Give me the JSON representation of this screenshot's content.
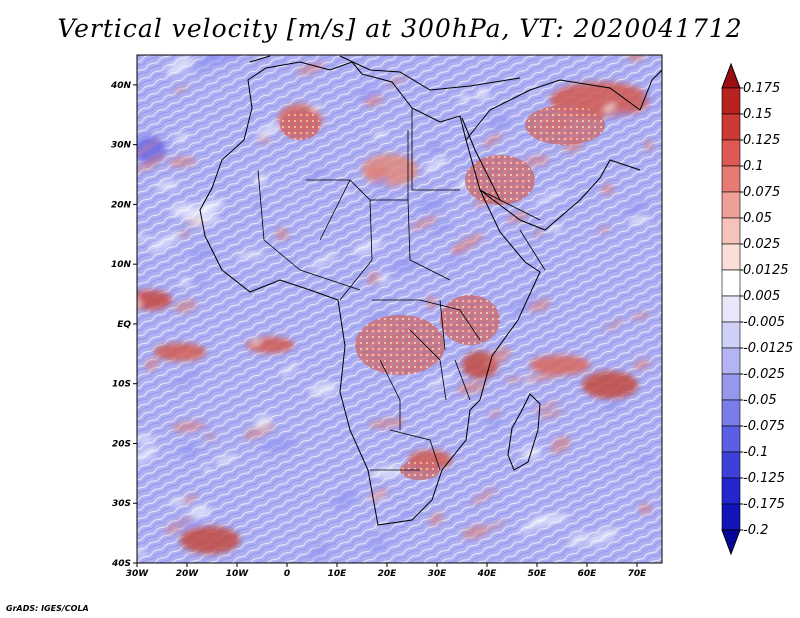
{
  "title": "Vertical velocity [m/s] at 300hPa, VT: 2020041712",
  "credit": "GrADS: IGES/COLA",
  "map": {
    "lon_range": [
      -30,
      75
    ],
    "lat_range": [
      -40,
      45
    ],
    "lon_ticks": [
      {
        "value": -30,
        "label": "30W"
      },
      {
        "value": -20,
        "label": "20W"
      },
      {
        "value": -10,
        "label": "10W"
      },
      {
        "value": 0,
        "label": "0"
      },
      {
        "value": 10,
        "label": "10E"
      },
      {
        "value": 20,
        "label": "20E"
      },
      {
        "value": 30,
        "label": "30E"
      },
      {
        "value": 40,
        "label": "40E"
      },
      {
        "value": 50,
        "label": "50E"
      },
      {
        "value": 60,
        "label": "60E"
      },
      {
        "value": 70,
        "label": "70E"
      }
    ],
    "lat_ticks": [
      {
        "value": 40,
        "label": "40N"
      },
      {
        "value": 30,
        "label": "30N"
      },
      {
        "value": 20,
        "label": "20N"
      },
      {
        "value": 10,
        "label": "10N"
      },
      {
        "value": 0,
        "label": "EQ"
      },
      {
        "value": -10,
        "label": "10S"
      },
      {
        "value": -20,
        "label": "20S"
      },
      {
        "value": -30,
        "label": "30S"
      },
      {
        "value": -40,
        "label": "40S"
      }
    ],
    "colors": {
      "background": "#aeb0f2",
      "neutral": "#ffffff",
      "positive": "#e07a70",
      "negative": "#8a8ff0",
      "coast": "#000000"
    }
  },
  "colorbar": {
    "levels": [
      "0.175",
      "0.15",
      "0.125",
      "0.1",
      "0.075",
      "0.05",
      "0.025",
      "0.0125",
      "0.005",
      "-0.005",
      "-0.0125",
      "-0.025",
      "-0.05",
      "-0.075",
      "-0.1",
      "-0.125",
      "-0.175",
      "-0.2"
    ],
    "colors": [
      "#9b0e13",
      "#b8221f",
      "#cd3a35",
      "#dc5a53",
      "#e57b72",
      "#ee9f96",
      "#f5c3bb",
      "#fadfd9",
      "#ffffff",
      "#e8e8fa",
      "#cfd0f6",
      "#b3b5f2",
      "#9698ee",
      "#7a7de9",
      "#5b5fe3",
      "#3d41da",
      "#2226cf",
      "#1114b8",
      "#05079a"
    ]
  }
}
